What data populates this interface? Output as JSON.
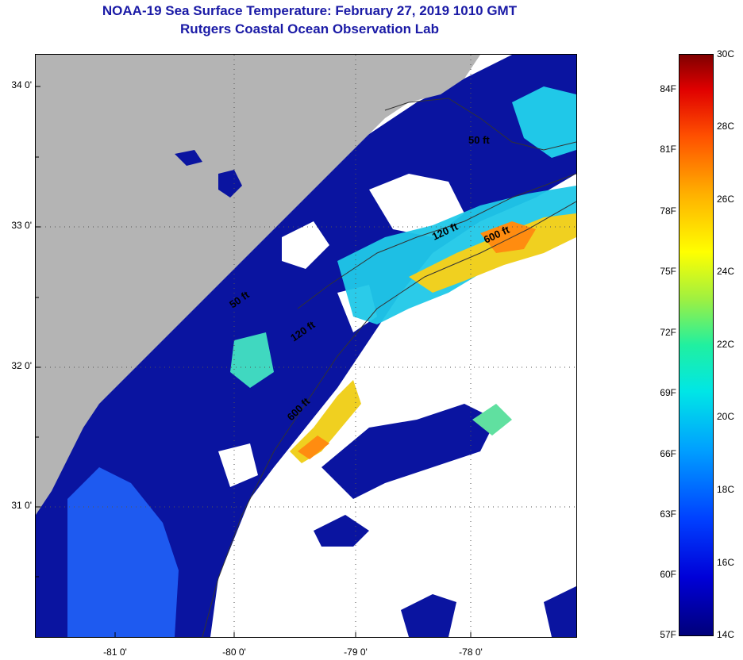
{
  "header": {
    "title": "NOAA-19 Sea Surface Temperature:  February 27, 2019 1010 GMT",
    "subtitle": "Rutgers Coastal Ocean Observation Lab"
  },
  "map": {
    "lat_labels": [
      "34 0'",
      "33 0'",
      "32 0'",
      "31 0'"
    ],
    "lon_labels": [
      "-81 0'",
      "-80 0'",
      "-79 0'",
      "-78 0'"
    ],
    "isobath_labels": [
      "50 ft",
      "120 ft",
      "600 ft",
      "50 ft",
      "120 ft",
      "600 ft"
    ],
    "colors": {
      "land": "#b4b4b4",
      "cloud": "#ffffff",
      "cold_water": "#0a14a0",
      "cool_water": "#1e5af0",
      "mid_water": "#20c8e8",
      "warm_water": "#f0d020",
      "hot_water": "#ff8c10"
    }
  },
  "colorbar": {
    "fahrenheit": [
      "84F",
      "81F",
      "78F",
      "75F",
      "72F",
      "69F",
      "66F",
      "63F",
      "60F",
      "57F"
    ],
    "celsius": [
      "30C",
      "28C",
      "26C",
      "24C",
      "22C",
      "20C",
      "18C",
      "16C",
      "14C"
    ]
  }
}
